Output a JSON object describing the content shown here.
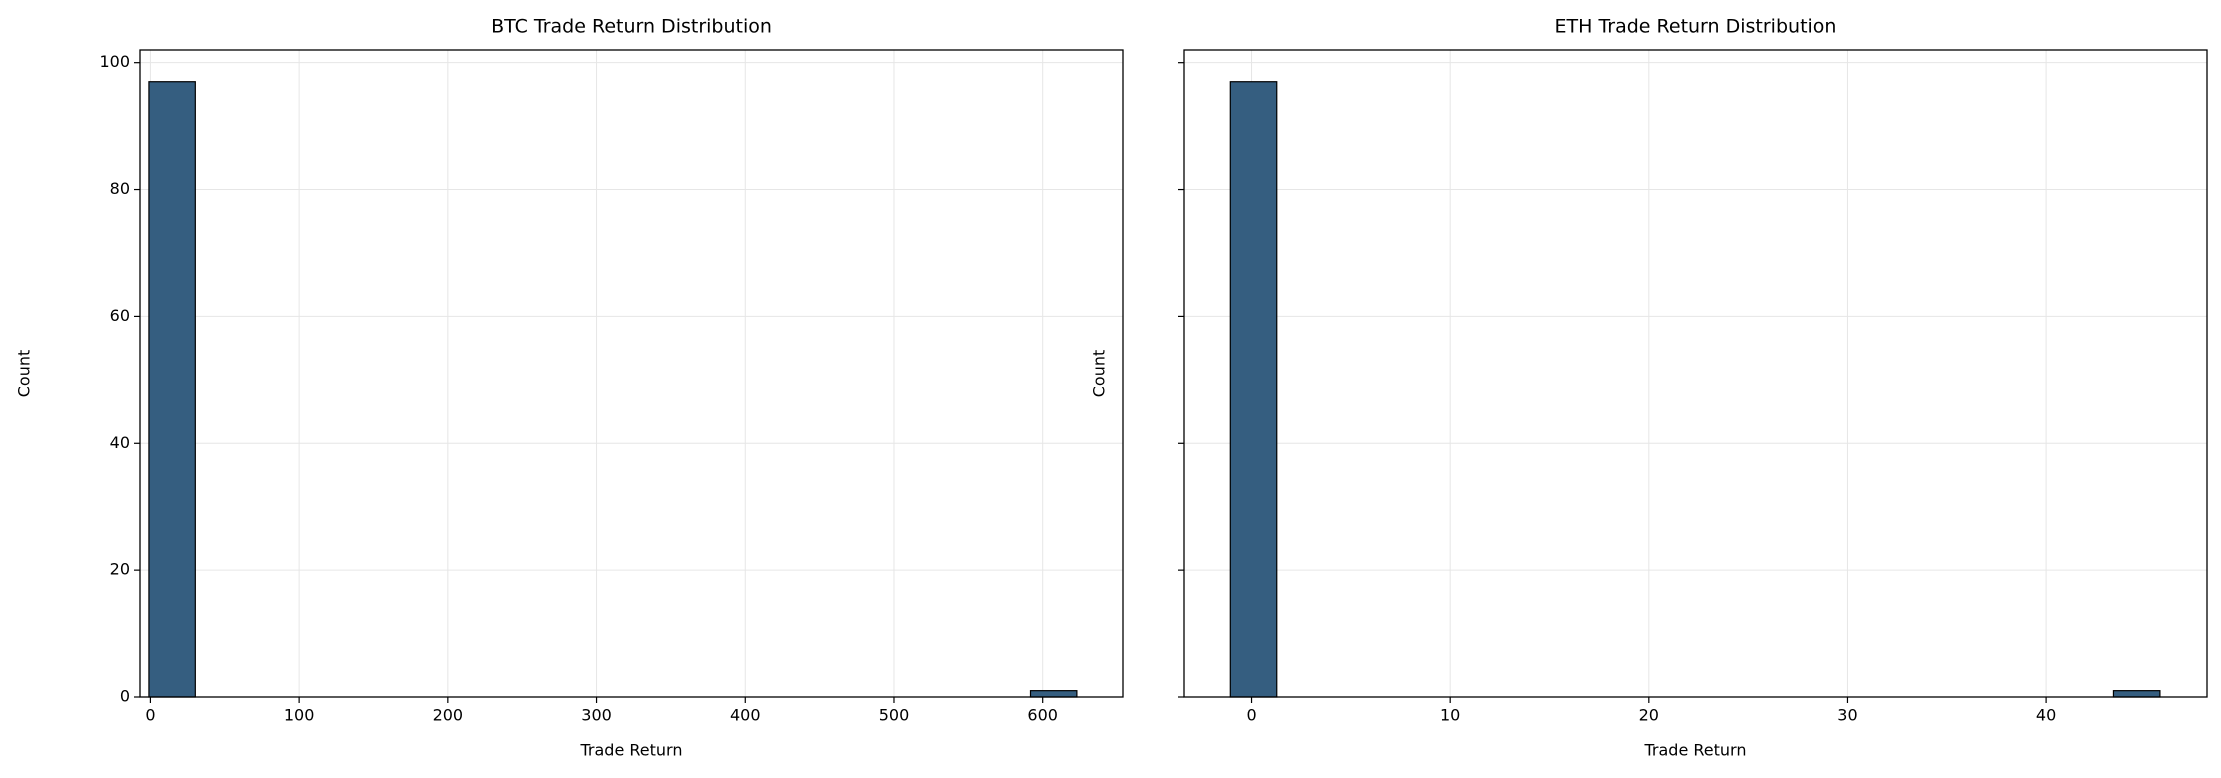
{
  "chart_data": [
    {
      "type": "histogram",
      "title": "BTC Trade Return Distribution",
      "xlabel": "Trade Return",
      "ylabel": "Count",
      "bins": [
        -1,
        30.2,
        61.4,
        92.6,
        123.8,
        155,
        186.2,
        217.4,
        248.6,
        279.8,
        311,
        342.2,
        373.4,
        404.6,
        435.8,
        467,
        498.2,
        529.4,
        560.6,
        591.8,
        623
      ],
      "values": [
        97,
        0,
        0,
        0,
        0,
        0,
        0,
        0,
        0,
        0,
        0,
        0,
        0,
        0,
        0,
        0,
        0,
        0,
        0,
        1
      ],
      "xlim": [
        -7,
        654
      ],
      "ylim": [
        0,
        102
      ],
      "xticks": [
        0,
        100,
        200,
        300,
        400,
        500,
        600
      ],
      "yticks": [
        0,
        20,
        40,
        60,
        80,
        100
      ],
      "ytick_labels": true,
      "color": "#355e80",
      "grid": true
    },
    {
      "type": "histogram",
      "title": "ETH Trade Return Distribution",
      "xlabel": "Trade Return",
      "ylabel": "Count",
      "bins": [
        -1.07,
        1.27,
        3.61,
        5.95,
        8.29,
        10.63,
        12.97,
        15.31,
        17.65,
        19.99,
        22.33,
        24.67,
        27.01,
        29.35,
        31.69,
        34.03,
        36.37,
        38.71,
        41.05,
        43.39,
        45.73
      ],
      "values": [
        97,
        0,
        0,
        0,
        0,
        0,
        0,
        0,
        0,
        0,
        0,
        0,
        0,
        0,
        0,
        0,
        0,
        0,
        0,
        1
      ],
      "xlim": [
        -3.4,
        48.1
      ],
      "ylim": [
        0,
        102
      ],
      "xticks": [
        0,
        10,
        20,
        30,
        40
      ],
      "yticks": [
        0,
        20,
        40,
        60,
        80,
        100
      ],
      "ytick_labels": false,
      "color": "#355e80",
      "grid": true
    }
  ]
}
